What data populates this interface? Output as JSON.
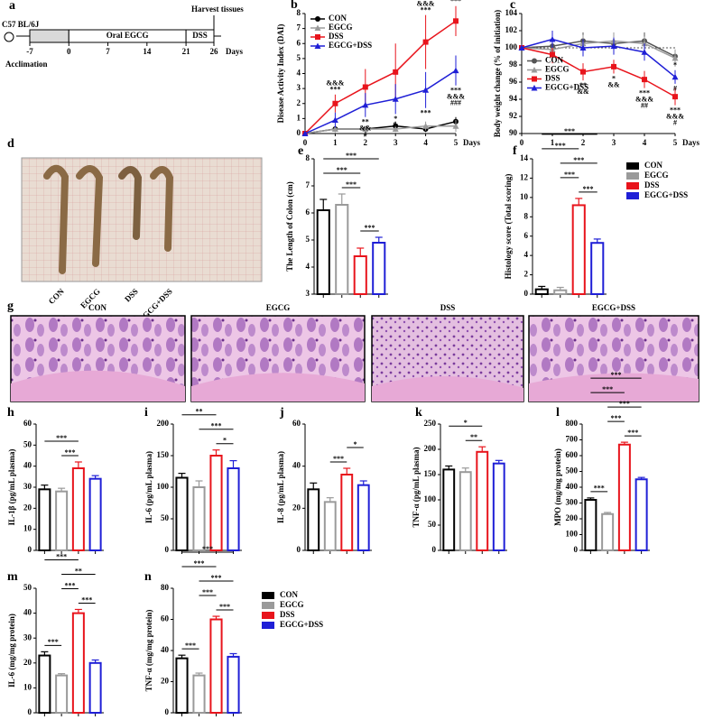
{
  "timeline": {
    "panel": "a",
    "strain": "C57 BL/6J",
    "harvest": "Harvest tissues",
    "days": [
      -7,
      0,
      7,
      14,
      21,
      26
    ],
    "unit": "Days",
    "acclimation": "Acclimation",
    "phases": [
      {
        "start": -7,
        "end": 0,
        "color": "#d9d9d9"
      },
      {
        "start": 0,
        "end": 21,
        "label": "Oral EGCG",
        "color": "#ffffff"
      },
      {
        "start": 21,
        "end": 26,
        "label": "DSS",
        "color": "#ffffff"
      }
    ]
  },
  "photos": {
    "panel": "d",
    "labels": [
      "CON",
      "EGCG",
      "DSS",
      "EGCG+DSS"
    ]
  },
  "histology": {
    "panel": "g",
    "titles": [
      "CON",
      "EGCG",
      "DSS",
      "EGCG+DSS"
    ]
  },
  "chart_data": [
    {
      "panel": "b",
      "type": "line",
      "ylabel": "Disease Activity Index (DAI)",
      "xlabel": "Days",
      "x": [
        0,
        1,
        2,
        3,
        4,
        5
      ],
      "xlim": [
        0,
        5
      ],
      "xticks": [
        0,
        1,
        2,
        3,
        4,
        5
      ],
      "ylim": [
        0,
        8
      ],
      "yticks": [
        0,
        1,
        2,
        3,
        4,
        5,
        6,
        7,
        8
      ],
      "legend": "upper left",
      "series": [
        {
          "name": "CON",
          "color": "#000000",
          "marker": "circle",
          "values": [
            0,
            0.3,
            0.3,
            0.5,
            0.3,
            0.8
          ],
          "errors": [
            0,
            0.2,
            0.2,
            0.3,
            0.2,
            0.3
          ]
        },
        {
          "name": "EGCG",
          "color": "#9a9a9a",
          "marker": "triangle",
          "values": [
            0,
            0.3,
            0.3,
            0.3,
            0.5,
            0.5
          ],
          "errors": [
            0,
            0.2,
            0.2,
            0.2,
            0.3,
            0.4
          ]
        },
        {
          "name": "DSS",
          "color": "#e8141c",
          "marker": "square",
          "values": [
            0,
            2,
            3.1,
            4.1,
            6.1,
            7.5
          ],
          "errors": [
            0,
            0.6,
            1.2,
            1.9,
            1.8,
            1
          ]
        },
        {
          "name": "EGCG+DSS",
          "color": "#1f1fd6",
          "marker": "triangle",
          "values": [
            0,
            0.9,
            1.9,
            2.3,
            2.9,
            4.2
          ],
          "errors": [
            0,
            0.5,
            0.8,
            1,
            1.2,
            1
          ]
        }
      ],
      "annotations": [
        {
          "text": "***",
          "series": 2,
          "index": 1,
          "color": "#000000",
          "position": "above"
        },
        {
          "text": "&&&",
          "series": 2,
          "index": 1,
          "color": "#e8141c",
          "position": "above"
        },
        {
          "text": "***",
          "series": 2,
          "index": 4,
          "color": "#000000",
          "position": "above"
        },
        {
          "text": "&&&",
          "series": 2,
          "index": 4,
          "color": "#e8141c",
          "position": "above"
        },
        {
          "text": "***",
          "series": 2,
          "index": 5,
          "color": "#000000",
          "position": "above"
        },
        {
          "text": "&&&",
          "series": 2,
          "index": 5,
          "color": "#e8141c",
          "position": "above"
        },
        {
          "text": "**",
          "series": 3,
          "index": 2,
          "color": "#000000",
          "position": "below"
        },
        {
          "text": "&&",
          "series": 3,
          "index": 2,
          "color": "#1f1fd6",
          "position": "below"
        },
        {
          "text": "#",
          "series": 3,
          "index": 2,
          "color": "#1f1fd6",
          "position": "below"
        },
        {
          "text": "*",
          "series": 3,
          "index": 3,
          "color": "#000000",
          "position": "below"
        },
        {
          "text": "&",
          "series": 3,
          "index": 3,
          "color": "#1f1fd6",
          "position": "below"
        },
        {
          "text": "***",
          "series": 3,
          "index": 4,
          "color": "#000000",
          "position": "below"
        },
        {
          "text": "***",
          "series": 3,
          "index": 5,
          "color": "#000000",
          "position": "below"
        },
        {
          "text": "&&&",
          "series": 3,
          "index": 5,
          "color": "#1f1fd6",
          "position": "below"
        },
        {
          "text": "###",
          "series": 3,
          "index": 5,
          "color": "#1f1fd6",
          "position": "below"
        }
      ]
    },
    {
      "panel": "c",
      "type": "line",
      "ylabel": "Body weight change (% of initiation)",
      "xlabel": "Days",
      "x": [
        0,
        1,
        2,
        3,
        4,
        5
      ],
      "xlim": [
        0,
        5
      ],
      "xticks": [
        0,
        1,
        2,
        3,
        4,
        5
      ],
      "ylim": [
        90,
        104
      ],
      "yticks": [
        90,
        92,
        94,
        96,
        98,
        100,
        102,
        104
      ],
      "hline": 100,
      "legend": "center left",
      "series": [
        {
          "name": "CON",
          "color": "#555555",
          "marker": "circle",
          "values": [
            100,
            100.2,
            100.8,
            100.5,
            100.8,
            99
          ],
          "errors": [
            0,
            0.8,
            1,
            0.8,
            1,
            0.8
          ]
        },
        {
          "name": "EGCG",
          "color": "#9a9a9a",
          "marker": "triangle",
          "values": [
            100,
            99.8,
            100.5,
            100.8,
            100.5,
            98.8
          ],
          "errors": [
            0,
            0.8,
            1,
            1,
            0.8,
            1
          ]
        },
        {
          "name": "DSS",
          "color": "#e8141c",
          "marker": "square",
          "values": [
            100,
            99.2,
            97.2,
            97.8,
            96.3,
            94.3
          ],
          "errors": [
            0,
            1,
            1,
            0.8,
            1,
            1
          ]
        },
        {
          "name": "EGCG+DSS",
          "color": "#1f1fd6",
          "marker": "triangle",
          "values": [
            100,
            101,
            100,
            100.2,
            99.5,
            96.6
          ],
          "errors": [
            0,
            1,
            1,
            1,
            1,
            0.8
          ]
        }
      ],
      "annotations": [
        {
          "text": "**",
          "series": 2,
          "index": 2,
          "color": "#000000",
          "position": "below"
        },
        {
          "text": "&&",
          "series": 2,
          "index": 2,
          "color": "#e8141c",
          "position": "below"
        },
        {
          "text": "*",
          "series": 2,
          "index": 3,
          "color": "#000000",
          "position": "below"
        },
        {
          "text": "&&",
          "series": 2,
          "index": 3,
          "color": "#e8141c",
          "position": "below"
        },
        {
          "text": "***",
          "series": 2,
          "index": 4,
          "color": "#000000",
          "position": "below"
        },
        {
          "text": "&&&",
          "series": 2,
          "index": 4,
          "color": "#e8141c",
          "position": "below"
        },
        {
          "text": "##",
          "series": 2,
          "index": 4,
          "color": "#e8141c",
          "position": "below"
        },
        {
          "text": "***",
          "series": 2,
          "index": 5,
          "color": "#000000",
          "position": "below"
        },
        {
          "text": "&&&",
          "series": 2,
          "index": 5,
          "color": "#e8141c",
          "position": "below"
        },
        {
          "text": "#",
          "series": 2,
          "index": 5,
          "color": "#e8141c",
          "position": "below"
        },
        {
          "text": "*",
          "series": 3,
          "index": 5,
          "color": "#000000",
          "position": "above"
        },
        {
          "text": "#",
          "series": 3,
          "index": 5,
          "color": "#1f1fd6",
          "position": "below"
        }
      ]
    },
    {
      "panel": "e",
      "type": "bar",
      "ylabel": "The Length of Colon (cm)",
      "values": [
        6.1,
        6.3,
        4.4,
        4.9
      ],
      "errors": [
        0.4,
        0.4,
        0.3,
        0.2
      ],
      "colors": [
        "#000000",
        "#9a9a9a",
        "#e8141c",
        "#1f1fd6"
      ],
      "ylim": [
        3,
        8
      ],
      "yticks": [
        3,
        4,
        5,
        6,
        7,
        8
      ],
      "brackets": [
        {
          "text": "***",
          "from": 2,
          "to": 3
        },
        {
          "text": "***",
          "from": 1,
          "to": 2
        },
        {
          "text": "***",
          "from": 0,
          "to": 2
        },
        {
          "text": "***",
          "from": 0,
          "to": 3
        }
      ]
    },
    {
      "panel": "f",
      "type": "bar",
      "ylabel": "Histology score (Total scoring)",
      "values": [
        0.5,
        0.4,
        9.2,
        5.3
      ],
      "errors": [
        0.3,
        0.3,
        0.7,
        0.4
      ],
      "colors": [
        "#000000",
        "#9a9a9a",
        "#e8141c",
        "#1f1fd6"
      ],
      "ylim": [
        0,
        14
      ],
      "yticks": [
        0,
        2,
        4,
        6,
        8,
        10,
        12,
        14
      ],
      "categories": [
        "CON",
        "EGCG",
        "DSS",
        "EGCG+DSS"
      ],
      "legend": "right",
      "brackets": [
        {
          "text": "***",
          "from": 2,
          "to": 3
        },
        {
          "text": "***",
          "from": 1,
          "to": 2
        },
        {
          "text": "***",
          "from": 1,
          "to": 3
        },
        {
          "text": "***",
          "from": 0,
          "to": 2
        },
        {
          "text": "***",
          "from": 0,
          "to": 3
        }
      ]
    },
    {
      "panel": "h",
      "type": "bar",
      "ylabel": "IL-1β (pg/mL plasma)",
      "values": [
        29,
        28,
        39,
        34
      ],
      "errors": [
        2,
        1.5,
        3,
        1.5
      ],
      "colors": [
        "#000000",
        "#9a9a9a",
        "#e8141c",
        "#1f1fd6"
      ],
      "ylim": [
        0,
        60
      ],
      "yticks": [
        0,
        10,
        20,
        30,
        40,
        50,
        60
      ],
      "brackets": [
        {
          "text": "***",
          "from": 1,
          "to": 2
        },
        {
          "text": "***",
          "from": 0,
          "to": 2
        }
      ]
    },
    {
      "panel": "i",
      "type": "bar",
      "ylabel": "IL-6 (pg/mL plasma)",
      "values": [
        115,
        100,
        150,
        130
      ],
      "errors": [
        7,
        10,
        9,
        12
      ],
      "colors": [
        "#000000",
        "#9a9a9a",
        "#e8141c",
        "#1f1fd6"
      ],
      "ylim": [
        0,
        200
      ],
      "yticks": [
        0,
        50,
        100,
        150,
        200
      ],
      "brackets": [
        {
          "text": "*",
          "from": 2,
          "to": 3
        },
        {
          "text": "***",
          "from": 1,
          "to": 3
        },
        {
          "text": "**",
          "from": 0,
          "to": 2
        }
      ]
    },
    {
      "panel": "j",
      "type": "bar",
      "ylabel": "IL-8 (pg/mL plasma)",
      "values": [
        29,
        23,
        36,
        31
      ],
      "errors": [
        3,
        2,
        3,
        2
      ],
      "colors": [
        "#000000",
        "#9a9a9a",
        "#e8141c",
        "#1f1fd6"
      ],
      "ylim": [
        0,
        60
      ],
      "yticks": [
        0,
        20,
        40,
        60
      ],
      "brackets": [
        {
          "text": "***",
          "from": 1,
          "to": 2
        },
        {
          "text": "*",
          "from": 2,
          "to": 3
        }
      ]
    },
    {
      "panel": "k",
      "type": "bar",
      "ylabel": "TNF-α (pg/mL plasma)",
      "values": [
        160,
        155,
        195,
        172
      ],
      "errors": [
        7,
        8,
        10,
        6
      ],
      "colors": [
        "#000000",
        "#9a9a9a",
        "#e8141c",
        "#1f1fd6"
      ],
      "ylim": [
        0,
        250
      ],
      "yticks": [
        0,
        50,
        100,
        150,
        200,
        250
      ],
      "brackets": [
        {
          "text": "**",
          "from": 1,
          "to": 2
        },
        {
          "text": "*",
          "from": 0,
          "to": 2
        }
      ]
    },
    {
      "panel": "l",
      "type": "bar",
      "ylabel": "MPO (mg/mg protein)",
      "values": [
        320,
        230,
        670,
        450
      ],
      "errors": [
        12,
        10,
        15,
        12
      ],
      "colors": [
        "#000000",
        "#9a9a9a",
        "#e8141c",
        "#1f1fd6"
      ],
      "ylim": [
        0,
        800
      ],
      "yticks": [
        0,
        100,
        200,
        300,
        400,
        500,
        600,
        700,
        800
      ],
      "brackets": [
        {
          "text": "***",
          "from": 0,
          "to": 1
        },
        {
          "text": "***",
          "from": 2,
          "to": 3
        },
        {
          "text": "***",
          "from": 1,
          "to": 2
        },
        {
          "text": "***",
          "from": 1,
          "to": 3
        },
        {
          "text": "***",
          "from": 0,
          "to": 2
        },
        {
          "text": "***",
          "from": 0,
          "to": 3
        }
      ]
    },
    {
      "panel": "m",
      "type": "bar",
      "ylabel": "IL-6 (mg/mg protein)",
      "values": [
        23,
        15,
        40,
        20
      ],
      "errors": [
        1.5,
        0.7,
        1.5,
        1.2
      ],
      "colors": [
        "#000000",
        "#9a9a9a",
        "#e8141c",
        "#1f1fd6"
      ],
      "ylim": [
        0,
        50
      ],
      "yticks": [
        0,
        10,
        20,
        30,
        40,
        50
      ],
      "brackets": [
        {
          "text": "***",
          "from": 0,
          "to": 1
        },
        {
          "text": "***",
          "from": 2,
          "to": 3
        },
        {
          "text": "***",
          "from": 1,
          "to": 2
        },
        {
          "text": "**",
          "from": 1,
          "to": 3
        },
        {
          "text": "***",
          "from": 0,
          "to": 2
        }
      ]
    },
    {
      "panel": "n",
      "type": "bar",
      "ylabel": "TNF-α (mg/mg protein)",
      "values": [
        35,
        24,
        60,
        36
      ],
      "errors": [
        2,
        1.5,
        2,
        2
      ],
      "colors": [
        "#000000",
        "#9a9a9a",
        "#e8141c",
        "#1f1fd6"
      ],
      "ylim": [
        0,
        80
      ],
      "yticks": [
        0,
        20,
        40,
        60,
        80
      ],
      "categories": [
        "CON",
        "EGCG",
        "DSS",
        "EGCG+DSS"
      ],
      "legend": "right",
      "brackets": [
        {
          "text": "***",
          "from": 0,
          "to": 1
        },
        {
          "text": "***",
          "from": 2,
          "to": 3
        },
        {
          "text": "***",
          "from": 1,
          "to": 2
        },
        {
          "text": "***",
          "from": 1,
          "to": 3
        },
        {
          "text": "***",
          "from": 0,
          "to": 2
        },
        {
          "text": "***",
          "from": 0,
          "to": 3
        }
      ]
    }
  ]
}
